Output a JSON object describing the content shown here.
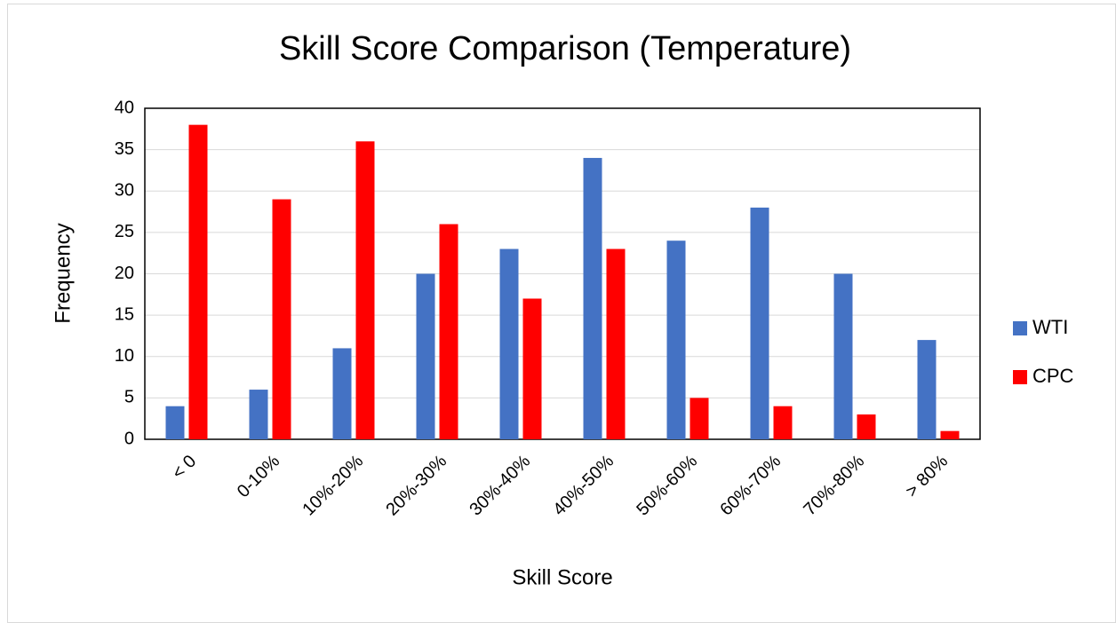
{
  "chart_data": {
    "type": "bar",
    "title": "Skill Score Comparison (Temperature)",
    "x_label": "Skill Score",
    "y_label": "Frequency",
    "categories": [
      "< 0",
      "0-10%",
      "10%-20%",
      "20%-30%",
      "30%-40%",
      "40%-50%",
      "50%-60%",
      "60%-70%",
      "70%-80%",
      "> 80%"
    ],
    "series": [
      {
        "name": "WTI",
        "color": "#4472c4",
        "values": [
          4,
          6,
          11,
          20,
          23,
          34,
          24,
          28,
          20,
          12
        ]
      },
      {
        "name": "CPC",
        "color": "#ff0000",
        "values": [
          38,
          29,
          36,
          26,
          17,
          23,
          5,
          4,
          3,
          1
        ]
      }
    ],
    "ylim": [
      0,
      40
    ],
    "yticks": [
      0,
      5,
      10,
      15,
      20,
      25,
      30,
      35,
      40
    ],
    "grid": true,
    "legend": "right"
  }
}
